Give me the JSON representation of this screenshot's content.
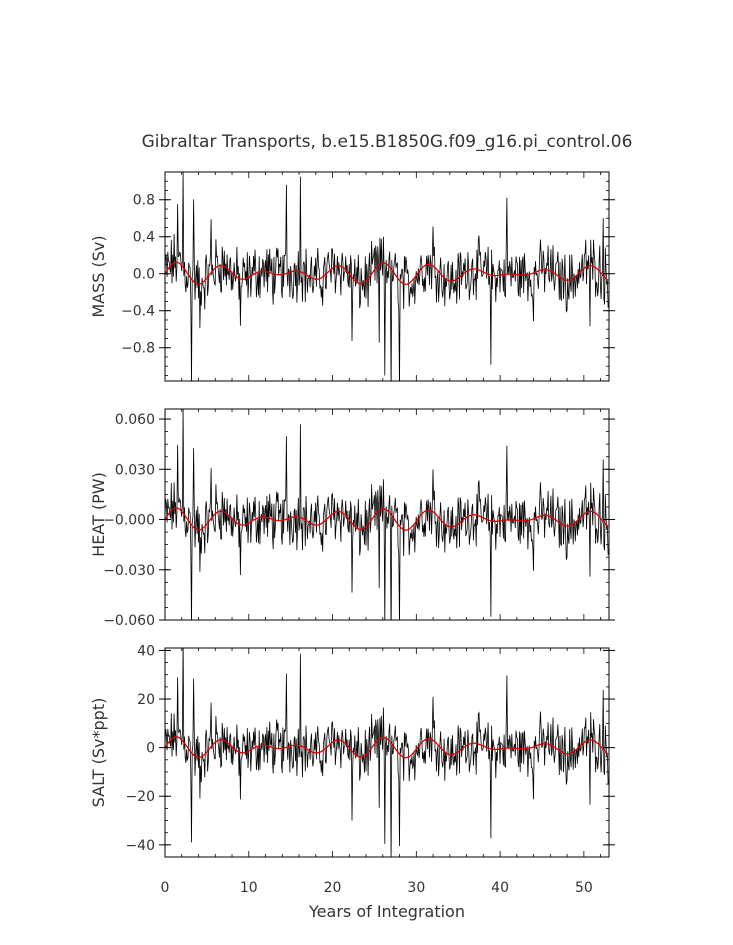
{
  "chart_data": {
    "title": "Gibraltar Transports, b.e15.B1850G.f09_g16.pi_control.06",
    "xlabel": "Years of Integration",
    "xlim": [
      0,
      53
    ],
    "xticks": [
      0,
      10,
      20,
      30,
      40,
      50
    ],
    "xtick_labels": [
      "0",
      "10",
      "20",
      "30",
      "40",
      "50"
    ],
    "panels": [
      {
        "ylabel": "MASS (Sv)",
        "ylim": [
          -1.16,
          1.1
        ],
        "yticks": [
          0.8,
          0.4,
          0.0,
          -0.4,
          -0.8
        ],
        "ytick_labels": [
          "0.8",
          "0.4",
          "0.0",
          "−0.4",
          "−0.8"
        ],
        "scale": 0.0255,
        "series": [
          {
            "type": "line",
            "color": "#000000",
            "values": "monthly transport (black)"
          },
          {
            "type": "line",
            "color": "#e00000",
            "values": "smoothed transport (red)"
          }
        ]
      },
      {
        "ylabel": "HEAT (PW)",
        "ylim": [
          -0.06,
          0.066
        ],
        "yticks": [
          0.06,
          0.03,
          0.0,
          -0.03,
          -0.06
        ],
        "ytick_labels": [
          "0.060",
          "0.030",
          "−0.000",
          "−0.030",
          "−0.060"
        ],
        "scale": 0.00142,
        "series": [
          {
            "type": "line",
            "color": "#000000"
          },
          {
            "type": "line",
            "color": "#e00000"
          }
        ]
      },
      {
        "ylabel": "SALT (Sv*ppt)",
        "ylim": [
          -45,
          41
        ],
        "yticks": [
          40,
          20,
          0,
          -20,
          -40
        ],
        "ytick_labels": [
          "40",
          "20",
          "0",
          "−20",
          "−40"
        ],
        "scale": 0.92,
        "series": [
          {
            "type": "line",
            "color": "#000000"
          },
          {
            "type": "line",
            "color": "#e00000"
          }
        ]
      }
    ],
    "base_signal": {
      "x_step": 0.0833,
      "spikes": [
        {
          "x": 2.2,
          "v": 42
        },
        {
          "x": 3.2,
          "v": -40
        },
        {
          "x": 3.4,
          "v": 30
        },
        {
          "x": 1.5,
          "v": 27
        },
        {
          "x": 16.2,
          "v": 40
        },
        {
          "x": 14.5,
          "v": 33
        },
        {
          "x": 26.2,
          "v": -38
        },
        {
          "x": 27.0,
          "v": -45
        },
        {
          "x": 28.0,
          "v": -44
        },
        {
          "x": 38.9,
          "v": -35
        },
        {
          "x": 40.8,
          "v": 31
        },
        {
          "x": 32.0,
          "v": 20
        },
        {
          "x": 9.0,
          "v": -20
        },
        {
          "x": 22.3,
          "v": -28
        },
        {
          "x": 25.6,
          "v": -25
        },
        {
          "x": 52.3,
          "v": 22
        },
        {
          "x": 4.2,
          "v": -22
        },
        {
          "x": 5.5,
          "v": 20
        },
        {
          "x": 50.7,
          "v": -22
        },
        {
          "x": 44.0,
          "v": -20
        }
      ],
      "smooth_amp": 4,
      "smooth_period": 5.5,
      "noise_amp": 9
    }
  }
}
